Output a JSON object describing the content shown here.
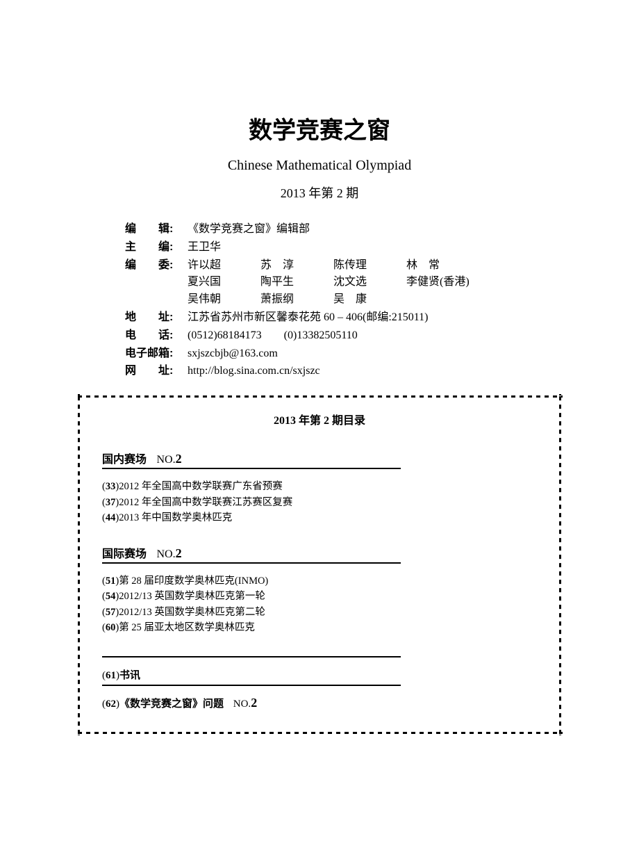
{
  "header": {
    "main_title": "数学竞赛之窗",
    "subtitle": "Chinese Mathematical Olympiad",
    "issue": "2013 年第 2 期"
  },
  "info": {
    "editor_label": "编　　辑:",
    "editor_value": "《数学竞赛之窗》编辑部",
    "chief_label": "主　　编:",
    "chief_value": "王卫华",
    "committee_label": "编　　委:",
    "committee": {
      "row1": [
        "许以超",
        "苏　淳",
        "陈传理",
        "林　常"
      ],
      "row2": [
        "夏兴国",
        "陶平生",
        "沈文选",
        "李健贤(香港)"
      ],
      "row3": [
        "吴伟朝",
        "萧振纲",
        "吴　康",
        ""
      ]
    },
    "address_label": "地　　址:",
    "address_value": "江苏省苏州市新区馨泰花苑 60 – 406(邮编:215011)",
    "phone_label": "电　　话:",
    "phone_value": "(0512)68184173　　(0)13382505110",
    "email_label": "电子邮箱:",
    "email_value": "sxjszcbjb@163.com",
    "web_label": "网　　址:",
    "web_value": "http://blog.sina.com.cn/sxjszc"
  },
  "toc": {
    "title": "2013 年第 2 期目录",
    "section1": {
      "header": "国内赛场",
      "no_label": "NO.",
      "no_num": "2",
      "entries": [
        {
          "page": "33",
          "title": "2012 年全国高中数学联赛广东省预赛"
        },
        {
          "page": "37",
          "title": "2012 年全国高中数学联赛江苏赛区复赛"
        },
        {
          "page": "44",
          "title": "2013 年中国数学奥林匹克"
        }
      ]
    },
    "section2": {
      "header": "国际赛场",
      "no_label": "NO.",
      "no_num": "2",
      "entries": [
        {
          "page": "51",
          "title": "第 28 届印度数学奥林匹克(INMO)"
        },
        {
          "page": "54",
          "title": "2012/13 英国数学奥林匹克第一轮"
        },
        {
          "page": "57",
          "title": "2012/13 英国数学奥林匹克第二轮"
        },
        {
          "page": "60",
          "title": "第 25 届亚太地区数学奥林匹克"
        }
      ]
    },
    "single1": {
      "page": "61",
      "title": "书讯"
    },
    "single2": {
      "page": "62",
      "title": "《数学竞赛之窗》问题",
      "no_label": "NO.",
      "no_num": "2"
    }
  }
}
